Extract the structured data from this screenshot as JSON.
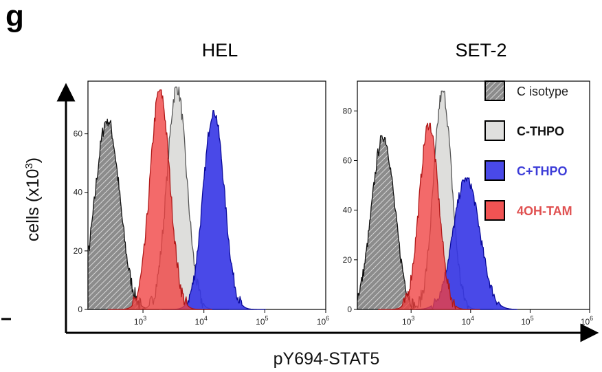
{
  "panel_letter": "g",
  "colors": {
    "isotype_fill": "#8c8c8c",
    "isotype_stroke": "#111111",
    "c_minus_thpo_fill": "#dcdcda",
    "c_minus_thpo_stroke": "#555555",
    "c_plus_thpo_fill": "#3535e6",
    "c_plus_thpo_stroke": "#0a0a9a",
    "tam_fill": "#f04040",
    "tam_stroke": "#b01818",
    "tam_legend_text": "#e05050",
    "thpo_legend_text": "#3d3dd8"
  },
  "axes": {
    "shared_xlabel": "pY694-STAT5",
    "shared_ylabel_main": "cells (x10",
    "shared_ylabel_sup": "3",
    "shared_ylabel_end": ")"
  },
  "legend": [
    {
      "label": "C isotype",
      "series": "isotype",
      "bold": false
    },
    {
      "label": "C-THPO",
      "series": "c_minus_thpo",
      "bold": true
    },
    {
      "label": "C+THPO",
      "series": "c_plus_thpo",
      "bold": true
    },
    {
      "label": "4OH-TAM",
      "series": "tam",
      "bold": true
    }
  ],
  "chart_data": [
    {
      "type": "area",
      "title": "HEL",
      "x_scale": "log",
      "xlim": [
        125,
        1000000
      ],
      "ylim": [
        0,
        78
      ],
      "x_ticks": [
        {
          "v": 1000,
          "base": "10",
          "exp": "3"
        },
        {
          "v": 10000,
          "base": "10",
          "exp": "4"
        },
        {
          "v": 100000,
          "base": "10",
          "exp": "5"
        },
        {
          "v": 1000000,
          "base": "10",
          "exp": "6"
        }
      ],
      "y_ticks": [
        0,
        20,
        40,
        60
      ],
      "series": [
        {
          "key": "isotype",
          "name": "C isotype",
          "peak_x": 260,
          "peak_y": 65,
          "width_log": 0.2,
          "noise": 5
        },
        {
          "key": "c_minus_thpo",
          "name": "C-THPO",
          "peak_x": 3600,
          "peak_y": 76,
          "width_log": 0.16,
          "noise": 5
        },
        {
          "key": "c_plus_thpo",
          "name": "C+THPO",
          "peak_x": 14500,
          "peak_y": 68,
          "width_log": 0.17,
          "noise": 4
        },
        {
          "key": "tam",
          "name": "4OH-TAM",
          "peak_x": 1900,
          "peak_y": 75,
          "width_log": 0.16,
          "noise": 5
        }
      ]
    },
    {
      "type": "area",
      "title": "SET-2",
      "x_scale": "log",
      "xlim": [
        125,
        1000000
      ],
      "ylim": [
        0,
        92
      ],
      "x_ticks": [
        {
          "v": 1000,
          "base": "10",
          "exp": "3"
        },
        {
          "v": 10000,
          "base": "10",
          "exp": "4"
        },
        {
          "v": 100000,
          "base": "10",
          "exp": "5"
        },
        {
          "v": 1000000,
          "base": "10",
          "exp": "6"
        }
      ],
      "y_ticks": [
        0,
        20,
        40,
        60,
        80
      ],
      "series": [
        {
          "key": "isotype",
          "name": "C isotype",
          "peak_x": 340,
          "peak_y": 70,
          "width_log": 0.19,
          "noise": 5
        },
        {
          "key": "c_minus_thpo",
          "name": "C-THPO",
          "peak_x": 3400,
          "peak_y": 88,
          "width_log": 0.15,
          "noise": 6
        },
        {
          "key": "c_plus_thpo",
          "name": "C+THPO",
          "peak_x": 8500,
          "peak_y": 53,
          "width_log": 0.22,
          "noise": 4
        },
        {
          "key": "tam",
          "name": "4OH-TAM",
          "peak_x": 2000,
          "peak_y": 75,
          "width_log": 0.16,
          "noise": 5
        }
      ]
    }
  ]
}
